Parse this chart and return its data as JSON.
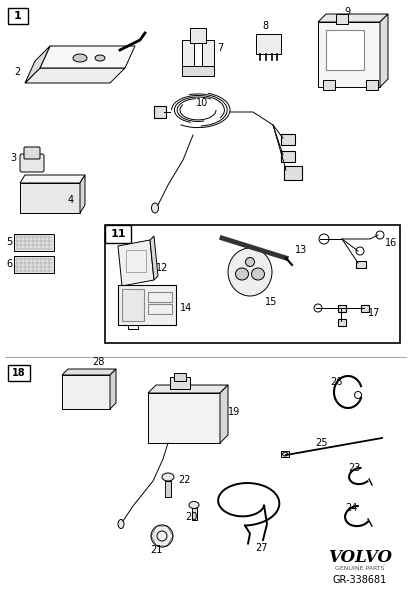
{
  "bg_color": "#ffffff",
  "line_color": "#000000",
  "volvo_text": "VOLVO",
  "genuine_parts": "GENUINE PARTS",
  "part_code": "GR-338681"
}
